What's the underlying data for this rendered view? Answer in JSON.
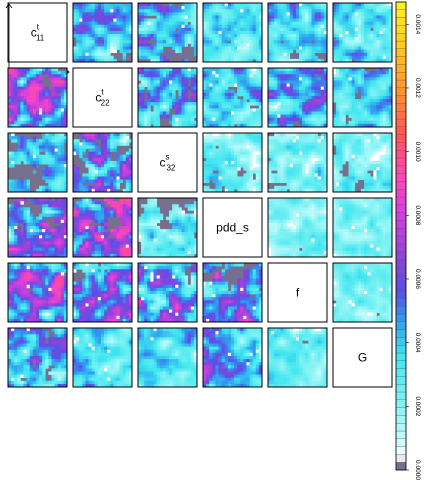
{
  "chart_data": {
    "type": "heatmap",
    "layout": "pairs-matrix",
    "variables": [
      {
        "key": "c11t",
        "base": "c",
        "sup": "t",
        "sub": "11"
      },
      {
        "key": "c22t",
        "base": "c",
        "sup": "t",
        "sub": "22"
      },
      {
        "key": "c32s",
        "base": "c",
        "sup": "s",
        "sub": "32"
      },
      {
        "key": "pdd_s",
        "base": "pdd_s",
        "sup": "",
        "sub": ""
      },
      {
        "key": "f",
        "base": "f",
        "sup": "",
        "sub": ""
      },
      {
        "key": "G",
        "base": "G",
        "sup": "",
        "sub": ""
      }
    ],
    "colorbar": {
      "min": 0.0,
      "max": 0.00147,
      "ticks": [
        "0.0000",
        "0.0002",
        "0.0004",
        "0.0006",
        "0.0008",
        "0.0010",
        "0.0012",
        "0.0014"
      ],
      "tick_values": [
        0.0,
        0.0002,
        0.0004,
        0.0006,
        0.0008,
        0.001,
        0.0012,
        0.0014
      ],
      "colors": [
        "#75708d",
        "#ffffff",
        "#c2fbfb",
        "#7ff2f3",
        "#40e6f0",
        "#2f9bf0",
        "#5a4fe6",
        "#8b45d8",
        "#d63fe0",
        "#ff47b8",
        "#ff5555",
        "#ff8a33",
        "#ffc21f",
        "#fff01a"
      ],
      "color_stops": [
        0.0,
        0.02,
        0.06,
        0.14,
        0.24,
        0.32,
        0.38,
        0.45,
        0.55,
        0.63,
        0.72,
        0.8,
        0.9,
        1.0
      ]
    },
    "panel_density": [
      [
        null,
        0.55,
        0.6,
        0.45,
        0.5,
        0.45
      ],
      [
        0.9,
        null,
        0.6,
        0.5,
        0.55,
        0.5
      ],
      [
        0.5,
        0.7,
        null,
        0.35,
        0.35,
        0.35
      ],
      [
        0.75,
        0.85,
        0.4,
        null,
        0.3,
        0.3
      ],
      [
        0.8,
        0.8,
        0.75,
        0.75,
        null,
        0.3
      ],
      [
        0.7,
        0.5,
        0.45,
        0.65,
        0.35,
        null
      ]
    ],
    "panel_missing": [
      [
        null,
        0.3,
        0.45,
        0.25,
        0.3,
        0.35
      ],
      [
        0.35,
        null,
        0.5,
        0.35,
        0.3,
        0.35
      ],
      [
        0.55,
        0.45,
        null,
        0.3,
        0.4,
        0.35
      ],
      [
        0.35,
        0.35,
        0.5,
        null,
        0.15,
        0.15
      ],
      [
        0.3,
        0.3,
        0.3,
        0.35,
        null,
        0.2
      ],
      [
        0.35,
        0.15,
        0.15,
        0.2,
        0.2,
        null
      ]
    ]
  }
}
